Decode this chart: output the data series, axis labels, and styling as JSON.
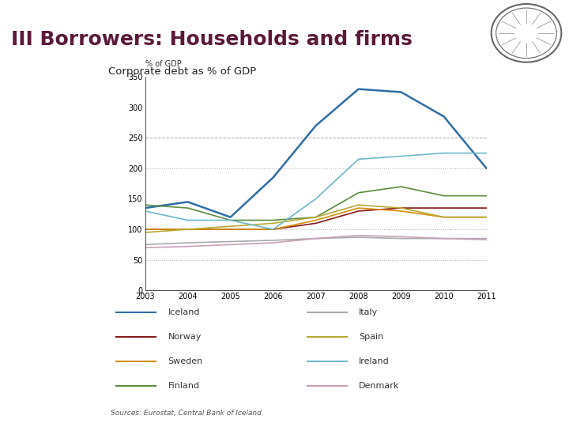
{
  "title": "III Borrowers: Households and firms",
  "chart_title": "Corporate debt as % of GDP",
  "ylabel": "% of GDP",
  "source": "Sources: Eurostat, Central Bank of Iceland.",
  "years": [
    2003,
    2004,
    2005,
    2006,
    2007,
    2008,
    2009,
    2010,
    2011
  ],
  "series": {
    "Iceland": [
      135,
      145,
      120,
      185,
      270,
      330,
      325,
      285,
      200
    ],
    "Norway": [
      100,
      100,
      100,
      100,
      110,
      130,
      135,
      135,
      135
    ],
    "Sweden": [
      100,
      100,
      100,
      100,
      115,
      135,
      130,
      120,
      120
    ],
    "Finland": [
      140,
      135,
      115,
      115,
      120,
      160,
      170,
      155,
      155
    ],
    "Italy": [
      75,
      78,
      80,
      82,
      85,
      87,
      85,
      85,
      85
    ],
    "Spain": [
      95,
      100,
      105,
      110,
      120,
      140,
      135,
      120,
      120
    ],
    "Ireland": [
      130,
      115,
      115,
      100,
      150,
      215,
      220,
      225,
      225
    ],
    "Denmark": [
      70,
      72,
      75,
      78,
      85,
      90,
      88,
      85,
      83
    ]
  },
  "colors": {
    "Iceland": "#2E6EA6",
    "Norway": "#8B1A1A",
    "Sweden": "#D4900A",
    "Finland": "#5B8C3E",
    "Italy": "#AAAAAA",
    "Spain": "#B8A830",
    "Ireland": "#6DB8C8",
    "Denmark": "#C8A0B8"
  },
  "ylim": [
    0,
    350
  ],
  "yticks": [
    0,
    50,
    100,
    150,
    200,
    250,
    300,
    350
  ],
  "title_color": "#5C1A3A",
  "bar_color": "#5C1A3A",
  "bg_color": "#FFFFFF",
  "fig_width": 7.2,
  "fig_height": 5.4,
  "countries_left": [
    "Iceland",
    "Norway",
    "Sweden",
    "Finland"
  ],
  "countries_right": [
    "Italy",
    "Spain",
    "Ireland",
    "Denmark"
  ]
}
